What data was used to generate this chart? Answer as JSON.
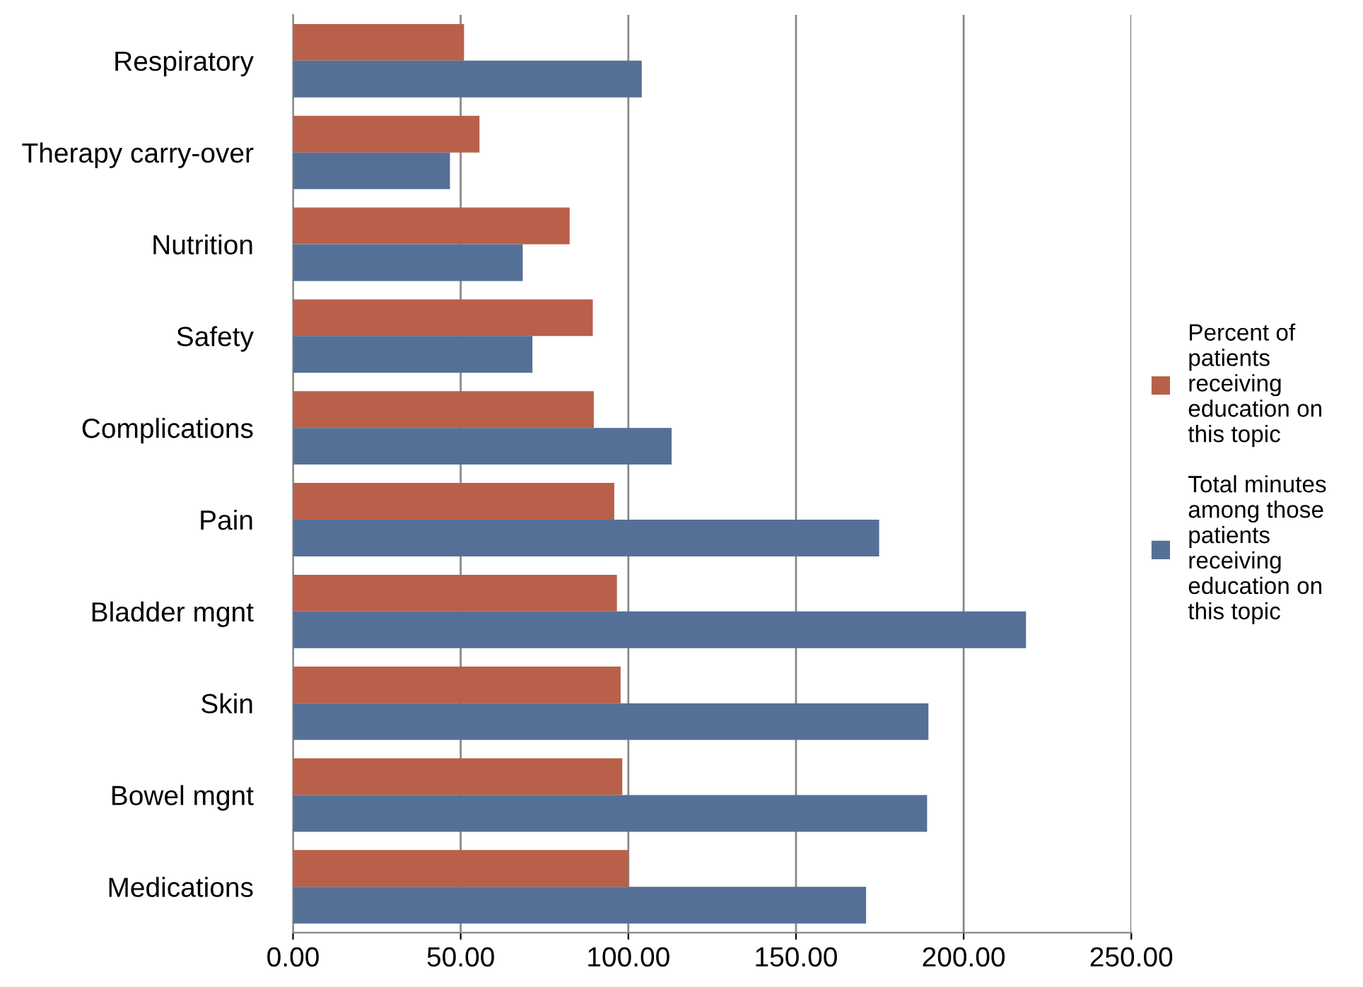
{
  "chart_data": {
    "type": "bar",
    "orientation": "horizontal",
    "categories": [
      "Respiratory",
      "Therapy carry-over",
      "Nutrition",
      "Safety",
      "Complications",
      "Pain",
      "Bladder mgnt",
      "Skin",
      "Bowel mgnt",
      "Medications"
    ],
    "series": [
      {
        "name": "Percent of patients receiving education on this topic",
        "color": "#b8604a",
        "values": [
          51.0,
          55.6,
          82.5,
          89.4,
          89.7,
          95.8,
          96.6,
          97.7,
          98.2,
          100.0
        ]
      },
      {
        "name": "Total minutes among those patients receiving education on this topic",
        "color": "#557096",
        "values": [
          104.0,
          46.8,
          68.5,
          71.4,
          112.9,
          174.8,
          218.6,
          189.5,
          189.1,
          170.9
        ]
      }
    ],
    "xlim": [
      0,
      250
    ],
    "xticks": [
      {
        "value": 0,
        "label": "0.00"
      },
      {
        "value": 50,
        "label": "50.00"
      },
      {
        "value": 100,
        "label": "100.00"
      },
      {
        "value": 150,
        "label": "150.00"
      },
      {
        "value": 200,
        "label": "200.00"
      },
      {
        "value": 250,
        "label": "250.00"
      }
    ],
    "grid": "x",
    "legend": "right"
  }
}
